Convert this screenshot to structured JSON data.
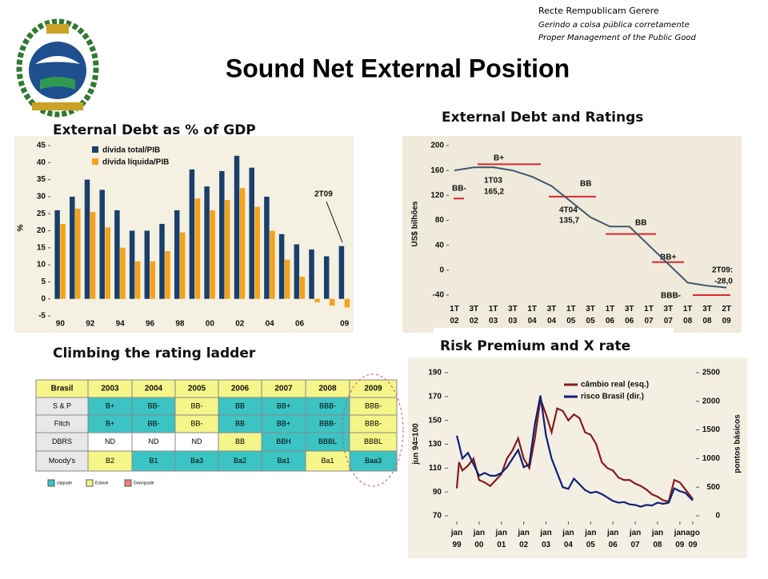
{
  "header": {
    "motto": [
      "Recte Rempublicam Gerere",
      "Gerindo a coisa pública corretamente",
      "Proper Management of the Public Good"
    ],
    "title": "Sound Net External Position"
  },
  "chart_data": [
    {
      "type": "bar",
      "title": "External Debt as % of GDP",
      "y_label": "%",
      "annotation": "2T09",
      "categories": [
        "90",
        null,
        "92",
        null,
        "94",
        null,
        "96",
        null,
        "98",
        null,
        "00",
        null,
        "02",
        null,
        "04",
        null,
        "06",
        null,
        null,
        "09"
      ],
      "series": [
        {
          "name": "dívida total/PIB",
          "color": "#1a3f6b",
          "values": [
            26,
            30,
            35,
            32,
            26,
            20,
            20,
            22,
            26,
            38,
            33,
            37.5,
            42,
            38.5,
            30,
            19,
            16,
            14.5,
            12.5,
            15.5
          ]
        },
        {
          "name": "dívida líquida/PIB",
          "color": "#f5a21b",
          "values": [
            22,
            26.5,
            25.5,
            21,
            15,
            11,
            11,
            14,
            19.5,
            29.5,
            26,
            29,
            32.5,
            27,
            20,
            11.5,
            6.5,
            -1,
            -2,
            -2.5
          ]
        }
      ],
      "ylim": [
        -5,
        45
      ],
      "yticks": [
        -5,
        0,
        5,
        10,
        15,
        20,
        25,
        30,
        35,
        40,
        45
      ],
      "grid": false
    },
    {
      "type": "line",
      "title": "External Debt and Ratings",
      "y_label": "US$ bilhões",
      "color": "#3d5a6e",
      "categories": [
        "1T 02",
        "3T 02",
        "1T 03",
        "3T 03",
        "1T 04",
        "3T 04",
        "1T 05",
        "3T 05",
        "1T 06",
        "3T 06",
        "1T 07",
        "3T 07",
        "1T 08",
        "3T 08",
        "2T 09"
      ],
      "values": [
        160,
        165,
        165.2,
        160,
        150,
        135,
        110,
        85,
        70,
        70,
        40,
        10,
        -20,
        -25,
        -28
      ],
      "ratings": [
        {
          "text": "BB-",
          "value": 115
        },
        {
          "text": "B+",
          "value": 170
        },
        {
          "text": "BB",
          "value": 118
        },
        {
          "text": "BB",
          "value": 58
        },
        {
          "text": "BB+",
          "value": 13
        },
        {
          "text": "BBB-",
          "value": -40
        }
      ],
      "rating_color": "#e0262b",
      "notes": [
        "1T03",
        "165,2",
        "4T04",
        "135,7",
        "2T09:",
        "-28,0"
      ],
      "ylim": [
        -40,
        200
      ],
      "yticks": [
        -40,
        0,
        40,
        80,
        120,
        160,
        200
      ],
      "grid": false
    },
    {
      "type": "line",
      "title": "Risk Premium and X rate",
      "y_label": "jun 94=100",
      "y2_label": "pontos básicos",
      "x": [
        1999,
        1999.1,
        1999.25,
        1999.5,
        1999.75,
        2000,
        2000.25,
        2000.5,
        2000.75,
        2001,
        2001.25,
        2001.5,
        2001.75,
        2002,
        2002.25,
        2002.5,
        2002.75,
        2003,
        2003.25,
        2003.5,
        2003.75,
        2004,
        2004.25,
        2004.5,
        2004.75,
        2005,
        2005.25,
        2005.5,
        2005.75,
        2006,
        2006.25,
        2006.5,
        2006.75,
        2007,
        2007.25,
        2007.5,
        2007.75,
        2008,
        2008.25,
        2008.5,
        2008.75,
        2009,
        2009.25,
        2009.58
      ],
      "series": [
        {
          "name": "câmbio real (esq.)",
          "color": "#8a1a1a",
          "values": [
            93,
            115,
            108,
            112,
            118,
            100,
            98,
            95,
            100,
            105,
            118,
            125,
            135,
            118,
            110,
            135,
            168,
            155,
            140,
            160,
            158,
            150,
            155,
            152,
            140,
            138,
            130,
            115,
            110,
            108,
            102,
            100,
            100,
            97,
            95,
            92,
            88,
            86,
            83,
            82,
            100,
            98,
            92,
            84
          ]
        },
        {
          "name": "risco Brasil (dir.)",
          "color": "#10207a",
          "axis": "y2",
          "values": [
            1400,
            1250,
            1000,
            1100,
            900,
            700,
            750,
            700,
            700,
            750,
            850,
            1000,
            1150,
            850,
            900,
            1600,
            2100,
            1400,
            1000,
            750,
            500,
            470,
            650,
            550,
            450,
            400,
            420,
            380,
            320,
            260,
            230,
            240,
            200,
            190,
            160,
            190,
            180,
            230,
            210,
            230,
            480,
            430,
            400,
            270
          ]
        }
      ],
      "xlim": [
        1999,
        2009.58
      ],
      "xticks": [
        {
          "value": 1999,
          "label": "jan 99"
        },
        {
          "value": 2000,
          "label": "jan 00"
        },
        {
          "value": 2001,
          "label": "jan 01"
        },
        {
          "value": 2002,
          "label": "jan 02"
        },
        {
          "value": 2003,
          "label": "jan 03"
        },
        {
          "value": 2004,
          "label": "jan 04"
        },
        {
          "value": 2005,
          "label": "jan 05"
        },
        {
          "value": 2006,
          "label": "jan 06"
        },
        {
          "value": 2007,
          "label": "jan 07"
        },
        {
          "value": 2008,
          "label": "jan 08"
        },
        {
          "value": 2009,
          "label": "jan 09"
        },
        {
          "value": 2009.58,
          "label": "ago 09"
        }
      ],
      "ylim": [
        70,
        190
      ],
      "yticks": [
        70,
        90,
        110,
        130,
        150,
        170,
        190
      ],
      "y2lim": [
        0,
        2500
      ],
      "y2ticks": [
        0,
        500,
        1000,
        1500,
        2000,
        2500
      ],
      "grid": false
    }
  ],
  "table": {
    "title": "Climbing the rating ladder",
    "header": [
      "Brasil",
      "2003",
      "2004",
      "2005",
      "2006",
      "2007",
      "2008",
      "2009"
    ],
    "rows": [
      [
        "S & P",
        "B+",
        "BB-",
        "BB-",
        "BB",
        "BB+",
        "BBB-",
        "BBB-"
      ],
      [
        "Fitch",
        "B+",
        "BB-",
        "BB-",
        "BB",
        "BB+",
        "BBB-",
        "BBB-"
      ],
      [
        "DBRS",
        "ND",
        "ND",
        "ND",
        "BB",
        "BBH",
        "BBBL",
        "BBBL"
      ],
      [
        "Moody's",
        "B2",
        "B1",
        "Ba3",
        "Ba2",
        "Ba1",
        "Ba1",
        "Baa3"
      ]
    ],
    "colors": [
      [
        "#3cc3c3",
        "#3cc3c3",
        "#f5f58a",
        "#3cc3c3",
        "#3cc3c3",
        "#3cc3c3",
        "#f5f58a"
      ],
      [
        "#3cc3c3",
        "#3cc3c3",
        "#f5f58a",
        "#3cc3c3",
        "#3cc3c3",
        "#3cc3c3",
        "#f5f58a"
      ],
      [
        "#ffffff",
        "#ffffff",
        "#ffffff",
        "#f5f58a",
        "#3cc3c3",
        "#3cc3c3",
        "#f5f58a"
      ],
      [
        "#f5f58a",
        "#3cc3c3",
        "#3cc3c3",
        "#3cc3c3",
        "#3cc3c3",
        "#f5f58a",
        "#3cc3c3"
      ]
    ],
    "legend": [
      {
        "label": "Upgrade",
        "color": "#3cc3c3"
      },
      {
        "label": "Estável",
        "color": "#f5f58a"
      },
      {
        "label": "Downgrade",
        "color": "#f08080"
      }
    ]
  }
}
